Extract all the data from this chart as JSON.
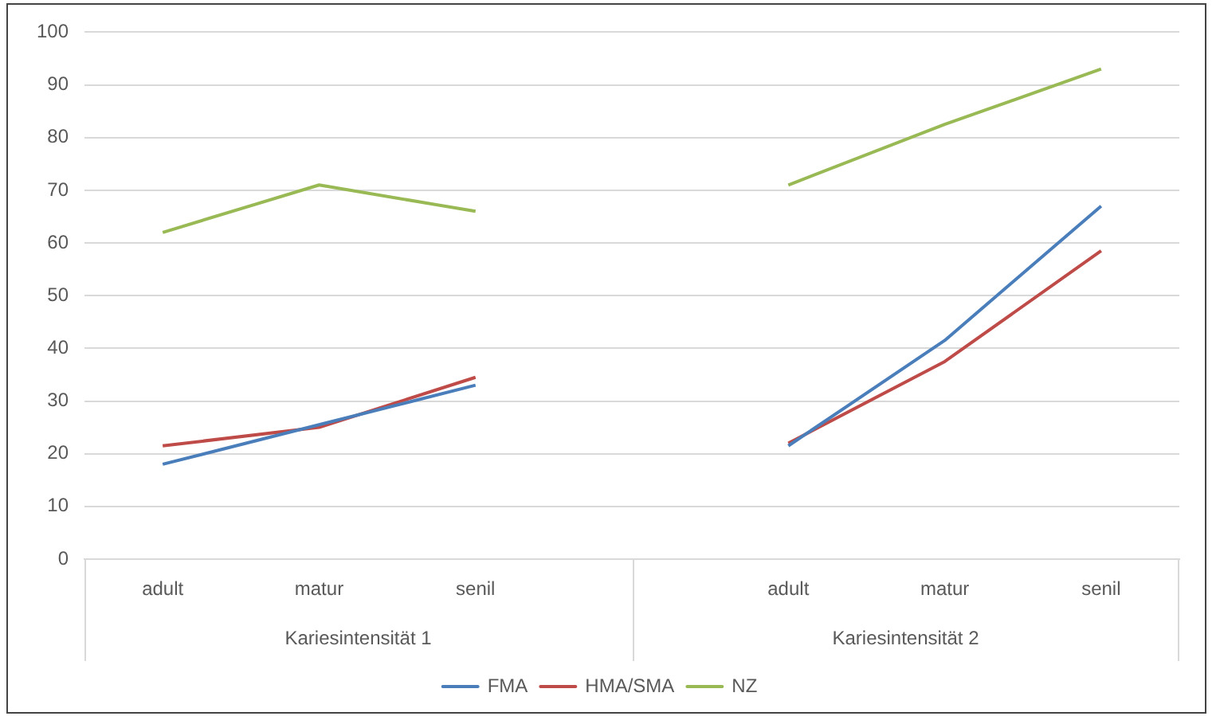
{
  "chart_data": {
    "type": "line",
    "categories": [
      "adult",
      "matur",
      "senil",
      null,
      "adult",
      "matur",
      "senil"
    ],
    "series": [
      {
        "name": "FMA",
        "color": "#4a7ebb",
        "values": [
          18,
          25.5,
          33,
          null,
          21.5,
          41.5,
          67
        ]
      },
      {
        "name": "HMA/SMA",
        "color": "#be4b48",
        "values": [
          21.5,
          25,
          34.5,
          null,
          22,
          37.5,
          58.5
        ]
      },
      {
        "name": "NZ",
        "color": "#98b954",
        "values": [
          62,
          71,
          66,
          null,
          71,
          82.5,
          93
        ]
      }
    ],
    "annotations": [
      "Kariesintensität 1",
      "Kariesintensität 2"
    ],
    "ylim": [
      0,
      100
    ],
    "yticks": [
      0,
      10,
      20,
      30,
      40,
      50,
      60,
      70,
      80,
      90,
      100
    ],
    "grid": "y",
    "legend": "bottom",
    "marker": "none",
    "line_style": "solid"
  }
}
